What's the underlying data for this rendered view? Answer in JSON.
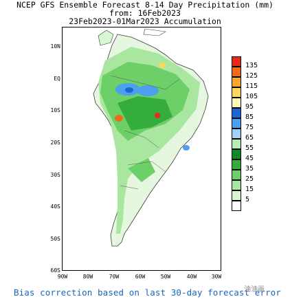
{
  "title": {
    "line1": "NCEP GFS Ensemble Forecast 8-14 Day Precipitation (mm)",
    "line2": "from: 16Feb2023",
    "line3": "23Feb2023-01Mar2023 Accumulation"
  },
  "lat_labels": [
    "10N",
    "EQ",
    "10S",
    "20S",
    "30S",
    "40S",
    "50S",
    "60S"
  ],
  "lon_labels": [
    "90W",
    "80W",
    "70W",
    "60W",
    "50W",
    "40W",
    "30W"
  ],
  "legend": {
    "values": [
      "135",
      "125",
      "115",
      "105",
      "95",
      "85",
      "75",
      "65",
      "55",
      "45",
      "35",
      "25",
      "15",
      "5"
    ],
    "colors": [
      "#e8271f",
      "#f06a1d",
      "#f9a532",
      "#fdd65c",
      "#fff9b7",
      "#1e66d1",
      "#4d9fef",
      "#9fd1fa",
      "#b6ecb5",
      "#0f8a27",
      "#35ad3e",
      "#6ccf67",
      "#a9e6a0",
      "#d8f6d0",
      "#ffffff"
    ]
  },
  "footer": "Bias correction based on last 30-day forecast error",
  "watermark": "油油画"
}
